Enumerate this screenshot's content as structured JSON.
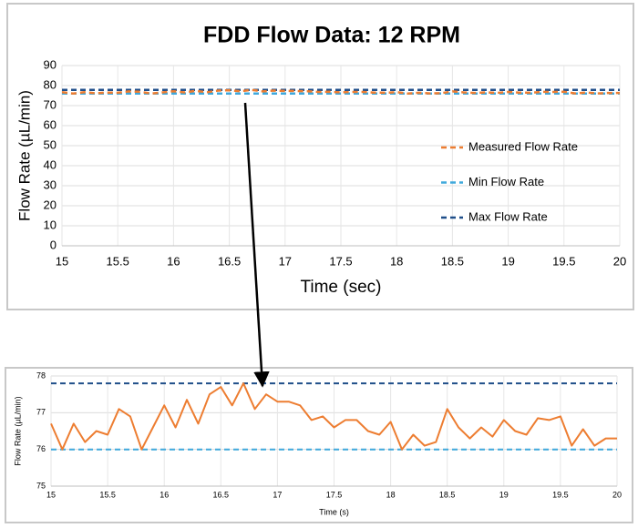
{
  "chart_data": [
    {
      "type": "line",
      "title": "FDD Flow Data: 12 RPM",
      "x_label": "Time (sec)",
      "y_label": "Flow Rate (µL/min)",
      "xlim": [
        15,
        20
      ],
      "xticks": [
        15,
        15.5,
        16,
        16.5,
        17,
        17.5,
        18,
        18.5,
        19,
        19.5,
        20
      ],
      "ylim": [
        0,
        90
      ],
      "yticks": [
        0,
        10,
        20,
        30,
        40,
        50,
        60,
        70,
        80,
        90
      ],
      "grid": true,
      "legend": "right",
      "x": [
        15.0,
        15.1,
        15.2,
        15.3,
        15.4,
        15.5,
        15.6,
        15.7,
        15.8,
        15.9,
        16.0,
        16.1,
        16.2,
        16.3,
        16.4,
        16.5,
        16.6,
        16.7,
        16.8,
        16.9,
        17.0,
        17.1,
        17.2,
        17.3,
        17.4,
        17.5,
        17.6,
        17.7,
        17.8,
        17.9,
        18.0,
        18.1,
        18.2,
        18.3,
        18.4,
        18.5,
        18.6,
        18.7,
        18.8,
        18.9,
        19.0,
        19.1,
        19.2,
        19.3,
        19.4,
        19.5,
        19.6,
        19.7,
        19.8,
        19.9,
        20.0
      ],
      "series": [
        {
          "name": "Measured Flow Rate",
          "color": "#ed7d31",
          "line_style": "dashed",
          "values": [
            76.7,
            76.0,
            76.7,
            76.2,
            76.5,
            76.4,
            77.1,
            76.9,
            76.0,
            76.6,
            77.2,
            76.6,
            77.35,
            76.7,
            77.5,
            77.7,
            77.2,
            77.8,
            77.1,
            77.5,
            77.3,
            77.3,
            77.2,
            76.8,
            76.9,
            76.6,
            76.8,
            76.8,
            76.5,
            76.4,
            76.75,
            76.0,
            76.4,
            76.1,
            76.2,
            77.1,
            76.6,
            76.3,
            76.6,
            76.35,
            76.8,
            76.5,
            76.4,
            76.85,
            76.8,
            76.9,
            76.1,
            76.55,
            76.1,
            76.3,
            76.3
          ]
        },
        {
          "name": "Min Flow Rate",
          "color": "#3fa8dc",
          "line_style": "dashed",
          "values": [
            76,
            76,
            76,
            76,
            76,
            76,
            76,
            76,
            76,
            76,
            76,
            76,
            76,
            76,
            76,
            76,
            76,
            76,
            76,
            76,
            76,
            76,
            76,
            76,
            76,
            76,
            76,
            76,
            76,
            76,
            76,
            76,
            76,
            76,
            76,
            76,
            76,
            76,
            76,
            76,
            76,
            76,
            76,
            76,
            76,
            76,
            76,
            76,
            76,
            76,
            76
          ]
        },
        {
          "name": "Max Flow Rate",
          "color": "#1f4e89",
          "line_style": "dashed",
          "values": [
            77.8,
            77.8,
            77.8,
            77.8,
            77.8,
            77.8,
            77.8,
            77.8,
            77.8,
            77.8,
            77.8,
            77.8,
            77.8,
            77.8,
            77.8,
            77.8,
            77.8,
            77.8,
            77.8,
            77.8,
            77.8,
            77.8,
            77.8,
            77.8,
            77.8,
            77.8,
            77.8,
            77.8,
            77.8,
            77.8,
            77.8,
            77.8,
            77.8,
            77.8,
            77.8,
            77.8,
            77.8,
            77.8,
            77.8,
            77.8,
            77.8,
            77.8,
            77.8,
            77.8,
            77.8,
            77.8,
            77.8,
            77.8,
            77.8,
            77.8,
            77.8
          ]
        }
      ]
    },
    {
      "type": "line",
      "x_label": "Time (s)",
      "y_label": "Flow Rate (µL/min)",
      "xlim": [
        15,
        20
      ],
      "xticks": [
        15,
        15.5,
        16,
        16.5,
        17,
        17.5,
        18,
        18.5,
        19,
        19.5,
        20
      ],
      "ylim": [
        75,
        78
      ],
      "yticks": [
        75,
        76,
        77,
        78
      ],
      "grid": true,
      "x": [
        15.0,
        15.1,
        15.2,
        15.3,
        15.4,
        15.5,
        15.6,
        15.7,
        15.8,
        15.9,
        16.0,
        16.1,
        16.2,
        16.3,
        16.4,
        16.5,
        16.6,
        16.7,
        16.8,
        16.9,
        17.0,
        17.1,
        17.2,
        17.3,
        17.4,
        17.5,
        17.6,
        17.7,
        17.8,
        17.9,
        18.0,
        18.1,
        18.2,
        18.3,
        18.4,
        18.5,
        18.6,
        18.7,
        18.8,
        18.9,
        19.0,
        19.1,
        19.2,
        19.3,
        19.4,
        19.5,
        19.6,
        19.7,
        19.8,
        19.9,
        20.0
      ],
      "series": [
        {
          "name": "Measured Flow Rate",
          "color": "#ed7d31",
          "line_style": "solid",
          "values": [
            76.7,
            76.0,
            76.7,
            76.2,
            76.5,
            76.4,
            77.1,
            76.9,
            76.0,
            76.6,
            77.2,
            76.6,
            77.35,
            76.7,
            77.5,
            77.7,
            77.2,
            77.8,
            77.1,
            77.5,
            77.3,
            77.3,
            77.2,
            76.8,
            76.9,
            76.6,
            76.8,
            76.8,
            76.5,
            76.4,
            76.75,
            76.0,
            76.4,
            76.1,
            76.2,
            77.1,
            76.6,
            76.3,
            76.6,
            76.35,
            76.8,
            76.5,
            76.4,
            76.85,
            76.8,
            76.9,
            76.1,
            76.55,
            76.1,
            76.3,
            76.3
          ]
        },
        {
          "name": "Min Flow Rate",
          "color": "#3fa8dc",
          "line_style": "dashed",
          "values": [
            76,
            76,
            76,
            76,
            76,
            76,
            76,
            76,
            76,
            76,
            76,
            76,
            76,
            76,
            76,
            76,
            76,
            76,
            76,
            76,
            76,
            76,
            76,
            76,
            76,
            76,
            76,
            76,
            76,
            76,
            76,
            76,
            76,
            76,
            76,
            76,
            76,
            76,
            76,
            76,
            76,
            76,
            76,
            76,
            76,
            76,
            76,
            76,
            76,
            76,
            76
          ]
        },
        {
          "name": "Max Flow Rate",
          "color": "#1f4e89",
          "line_style": "dashed",
          "values": [
            77.8,
            77.8,
            77.8,
            77.8,
            77.8,
            77.8,
            77.8,
            77.8,
            77.8,
            77.8,
            77.8,
            77.8,
            77.8,
            77.8,
            77.8,
            77.8,
            77.8,
            77.8,
            77.8,
            77.8,
            77.8,
            77.8,
            77.8,
            77.8,
            77.8,
            77.8,
            77.8,
            77.8,
            77.8,
            77.8,
            77.8,
            77.8,
            77.8,
            77.8,
            77.8,
            77.8,
            77.8,
            77.8,
            77.8,
            77.8,
            77.8,
            77.8,
            77.8,
            77.8,
            77.8,
            77.8,
            77.8,
            77.8,
            77.8,
            77.8,
            77.8
          ]
        }
      ]
    }
  ]
}
